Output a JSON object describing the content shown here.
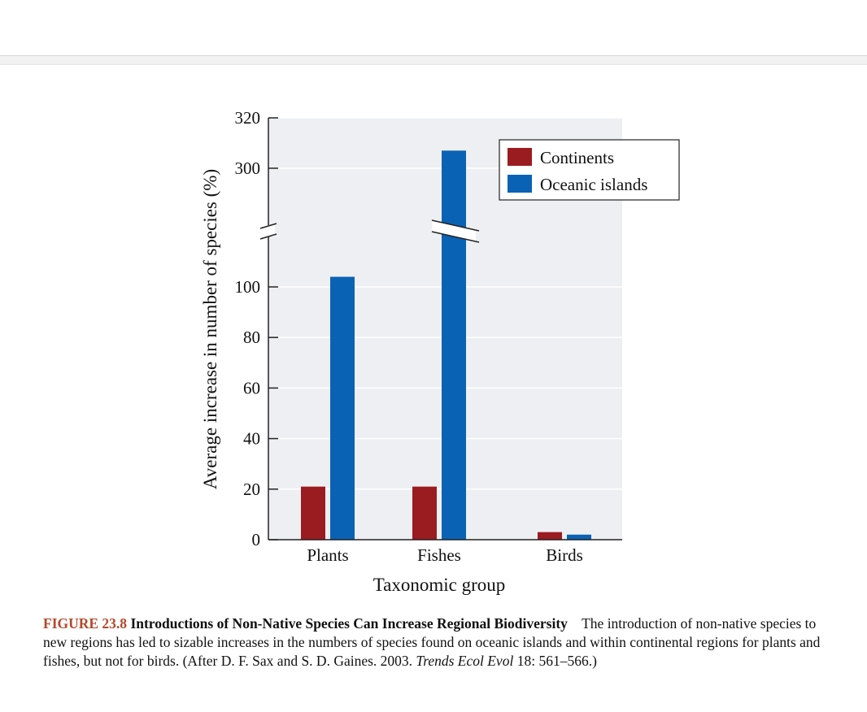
{
  "chart_data": {
    "type": "bar",
    "categories": [
      "Plants",
      "Fishes",
      "Birds"
    ],
    "series": [
      {
        "name": "Continents",
        "color": "#9b1c20",
        "values": [
          21,
          21,
          3
        ]
      },
      {
        "name": "Oceanic islands",
        "color": "#0a62b4",
        "values": [
          104,
          307,
          2
        ]
      }
    ],
    "xlabel": "Taxonomic group",
    "ylabel": "Average increase in number of species (%)",
    "lower_axis": {
      "ylim": [
        0,
        118
      ],
      "ticks": [
        0,
        20,
        40,
        60,
        80,
        100
      ]
    },
    "upper_axis": {
      "ylim": [
        282,
        320
      ],
      "ticks": [
        300,
        320
      ]
    },
    "axis_break": true,
    "grid": true,
    "legend_position": "top-right",
    "background_color": "#eeeff3"
  },
  "caption": {
    "figure_number": "FIGURE 23.8",
    "title": "Introductions of Non-Native Species Can Increase Regional Biodiversity",
    "text_before_journal": "The introduction of non-native species to new regions has led to sizable increases in the numbers of species found on oceanic islands and within continental regions for plants and fishes, but not for birds. (After D. F. Sax and S. D. Gaines. 2003.",
    "journal": "Trends Ecol Evol",
    "text_after_journal": "18: 561–566.)"
  }
}
